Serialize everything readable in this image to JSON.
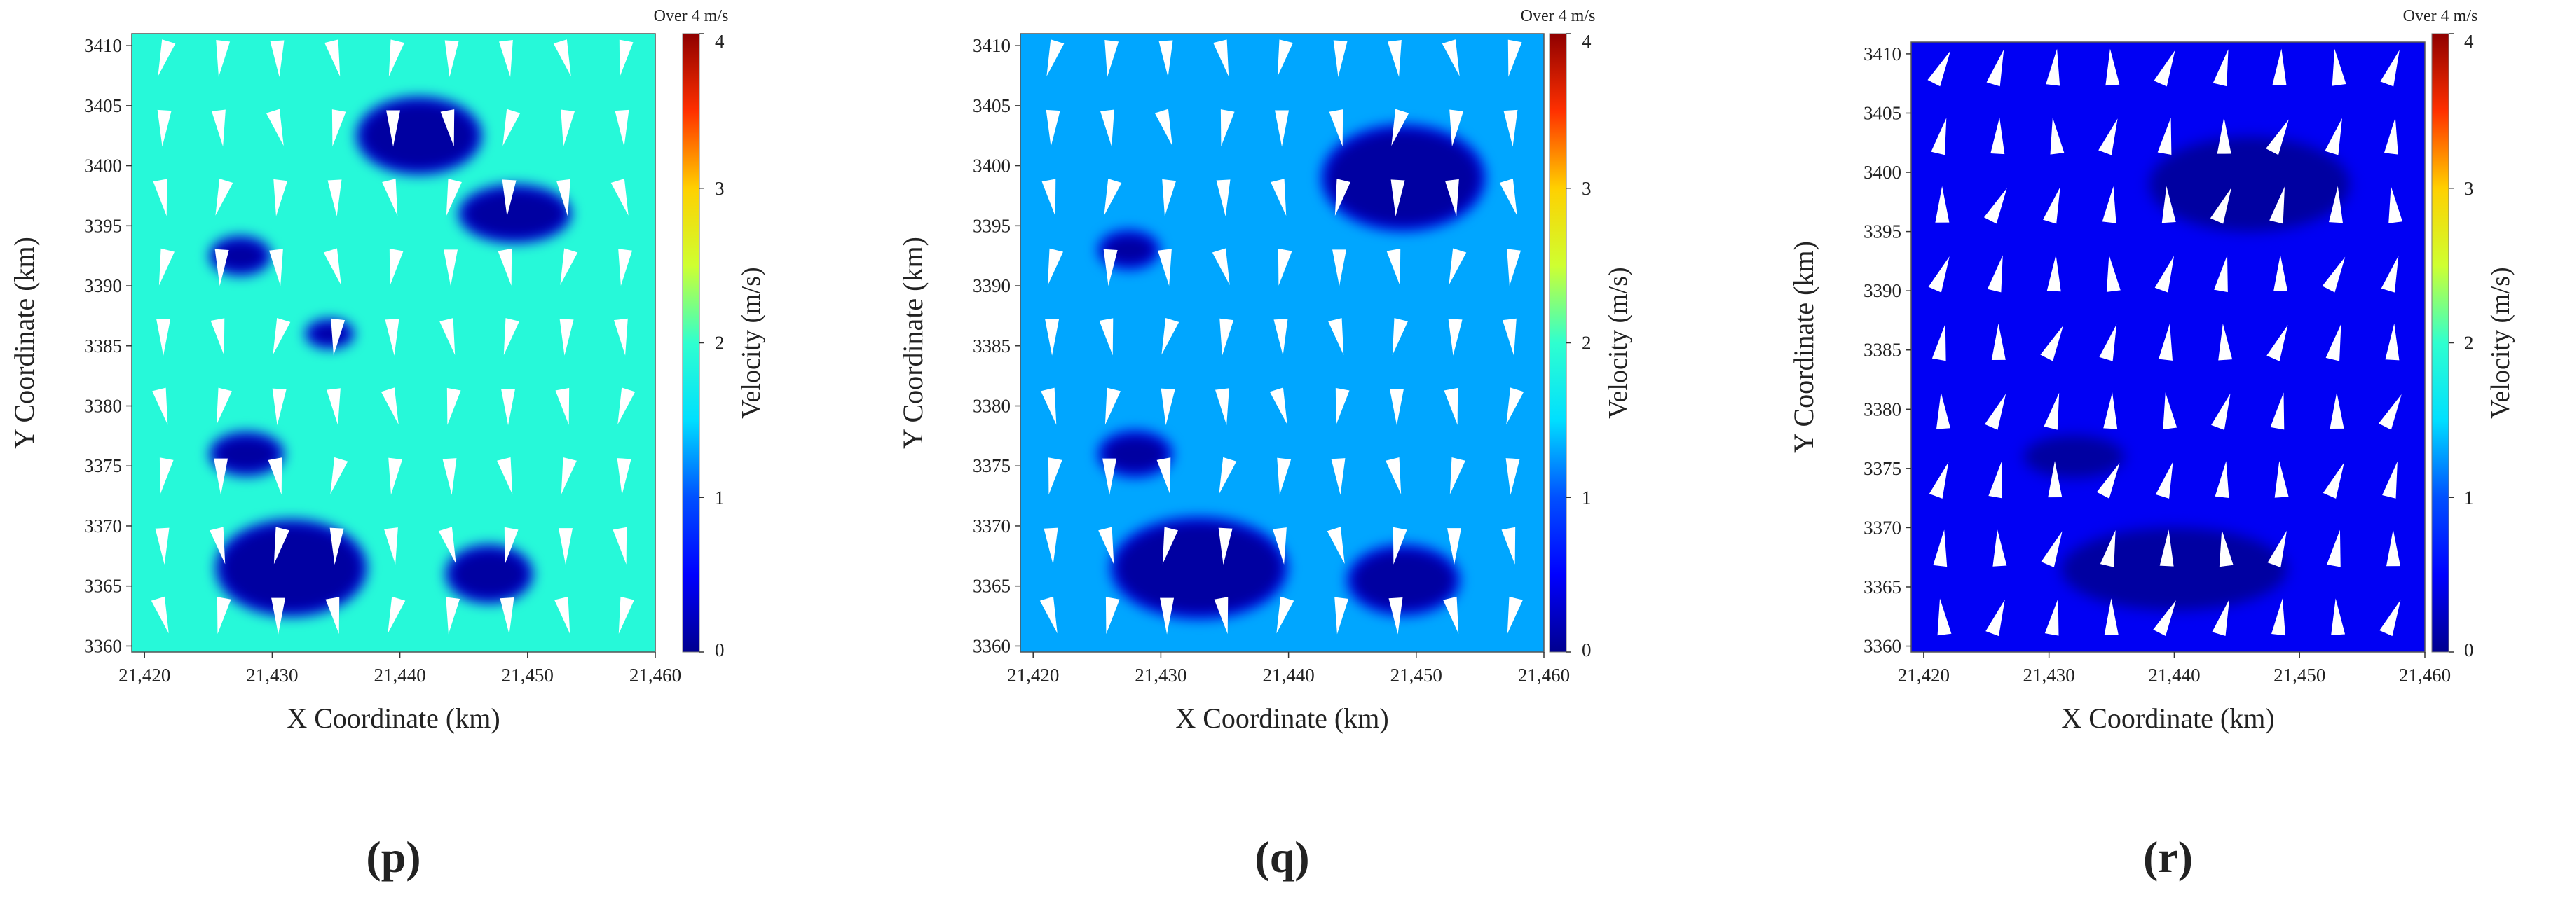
{
  "chart_data": [
    {
      "type": "heatmap",
      "panel_label": "(p)",
      "title": "",
      "xlabel": "X Coordinate (km)",
      "ylabel": "Y Coordinate (km)",
      "xlim": [
        21419,
        21460
      ],
      "ylim": [
        3359.5,
        3411
      ],
      "x_ticks": [
        21420,
        21430,
        21440,
        21450,
        21460
      ],
      "x_tick_labels": [
        "21,420",
        "21,430",
        "21,440",
        "21,450",
        "21,460"
      ],
      "y_ticks": [
        3360,
        3365,
        3370,
        3375,
        3380,
        3385,
        3390,
        3395,
        3400,
        3405,
        3410
      ],
      "y_tick_labels": [
        "3360",
        "3365",
        "3370",
        "3375",
        "3380",
        "3385",
        "3390",
        "3395",
        "3400",
        "3405",
        "3410"
      ],
      "colorbar": {
        "label": "Velocity (m/s)",
        "range": [
          0,
          4
        ],
        "ticks": [
          0,
          1,
          2,
          3,
          4
        ],
        "tick_labels": [
          "0",
          "1",
          "2",
          "3",
          "4"
        ],
        "over_label": "Over 4 m/s"
      },
      "background_velocity": 1.9,
      "low_velocity_zones": [
        {
          "cx": 21431.5,
          "cy": 3366.5,
          "rx": 5.5,
          "ry": 3.6
        },
        {
          "cx": 21441.5,
          "cy": 3402.5,
          "rx": 4.5,
          "ry": 2.8
        },
        {
          "cx": 21449,
          "cy": 3396,
          "rx": 4,
          "ry": 2
        },
        {
          "cx": 21447,
          "cy": 3366,
          "rx": 3,
          "ry": 2
        },
        {
          "cx": 21428,
          "cy": 3376,
          "rx": 2.5,
          "ry": 1.4
        },
        {
          "cx": 21427.5,
          "cy": 3392.5,
          "rx": 2,
          "ry": 1.2
        },
        {
          "cx": 21434.5,
          "cy": 3386,
          "rx": 1.5,
          "ry": 0.8
        }
      ],
      "arrow_spacing": [
        4.5,
        5.8
      ],
      "arrow_direction_deg": 270
    },
    {
      "type": "heatmap",
      "panel_label": "(q)",
      "title": "",
      "xlabel": "X Coordinate (km)",
      "ylabel": "Y Coordinate (km)",
      "xlim": [
        21419,
        21460
      ],
      "ylim": [
        3359.5,
        3411
      ],
      "x_ticks": [
        21420,
        21430,
        21440,
        21450,
        21460
      ],
      "x_tick_labels": [
        "21,420",
        "21,430",
        "21,440",
        "21,450",
        "21,460"
      ],
      "y_ticks": [
        3360,
        3365,
        3370,
        3375,
        3380,
        3385,
        3390,
        3395,
        3400,
        3405,
        3410
      ],
      "y_tick_labels": [
        "3360",
        "3365",
        "3370",
        "3375",
        "3380",
        "3385",
        "3390",
        "3395",
        "3400",
        "3405",
        "3410"
      ],
      "colorbar": {
        "label": "Velocity (m/s)",
        "range": [
          0,
          4
        ],
        "ticks": [
          0,
          1,
          2,
          3,
          4
        ],
        "tick_labels": [
          "0",
          "1",
          "2",
          "3",
          "4"
        ],
        "over_label": "Over 4 m/s"
      },
      "background_velocity": 1.3,
      "low_velocity_zones": [
        {
          "cx": 21433,
          "cy": 3366.5,
          "rx": 6.5,
          "ry": 3.8
        },
        {
          "cx": 21449,
          "cy": 3399,
          "rx": 6,
          "ry": 4
        },
        {
          "cx": 21449,
          "cy": 3365.5,
          "rx": 4,
          "ry": 2.5
        },
        {
          "cx": 21428,
          "cy": 3376,
          "rx": 2.5,
          "ry": 1.5
        },
        {
          "cx": 21427.5,
          "cy": 3393,
          "rx": 2,
          "ry": 1.2
        }
      ],
      "arrow_spacing": [
        4.5,
        5.8
      ],
      "arrow_direction_deg": 270
    },
    {
      "type": "heatmap",
      "panel_label": "(r)",
      "title": "",
      "xlabel": "X Coordinate (km)",
      "ylabel": "Y Coordinate (km)",
      "xlim": [
        21419,
        21460
      ],
      "ylim": [
        3359.5,
        3411
      ],
      "x_ticks": [
        21420,
        21430,
        21440,
        21450,
        21460
      ],
      "x_tick_labels": [
        "21,420",
        "21,430",
        "21,440",
        "21,450",
        "21,460"
      ],
      "y_ticks": [
        3360,
        3365,
        3370,
        3375,
        3380,
        3385,
        3390,
        3395,
        3400,
        3405,
        3410
      ],
      "y_tick_labels": [
        "3360",
        "3365",
        "3370",
        "3375",
        "3380",
        "3385",
        "3390",
        "3395",
        "3400",
        "3405",
        "3410"
      ],
      "colorbar": {
        "label": "Velocity (m/s)",
        "range": [
          0,
          4
        ],
        "ticks": [
          0,
          1,
          2,
          3,
          4
        ],
        "tick_labels": [
          "0",
          "1",
          "2",
          "3",
          "4"
        ],
        "over_label": "Over 4 m/s"
      },
      "background_velocity": 0.45,
      "low_velocity_zones": [
        {
          "cx": 21440,
          "cy": 3366.5,
          "rx": 9,
          "ry": 3.5
        },
        {
          "cx": 21446,
          "cy": 3399,
          "rx": 8,
          "ry": 4
        },
        {
          "cx": 21432,
          "cy": 3376,
          "rx": 4,
          "ry": 1.8
        }
      ],
      "arrow_spacing": [
        4.5,
        5.8
      ],
      "arrow_direction_deg": 80
    }
  ]
}
